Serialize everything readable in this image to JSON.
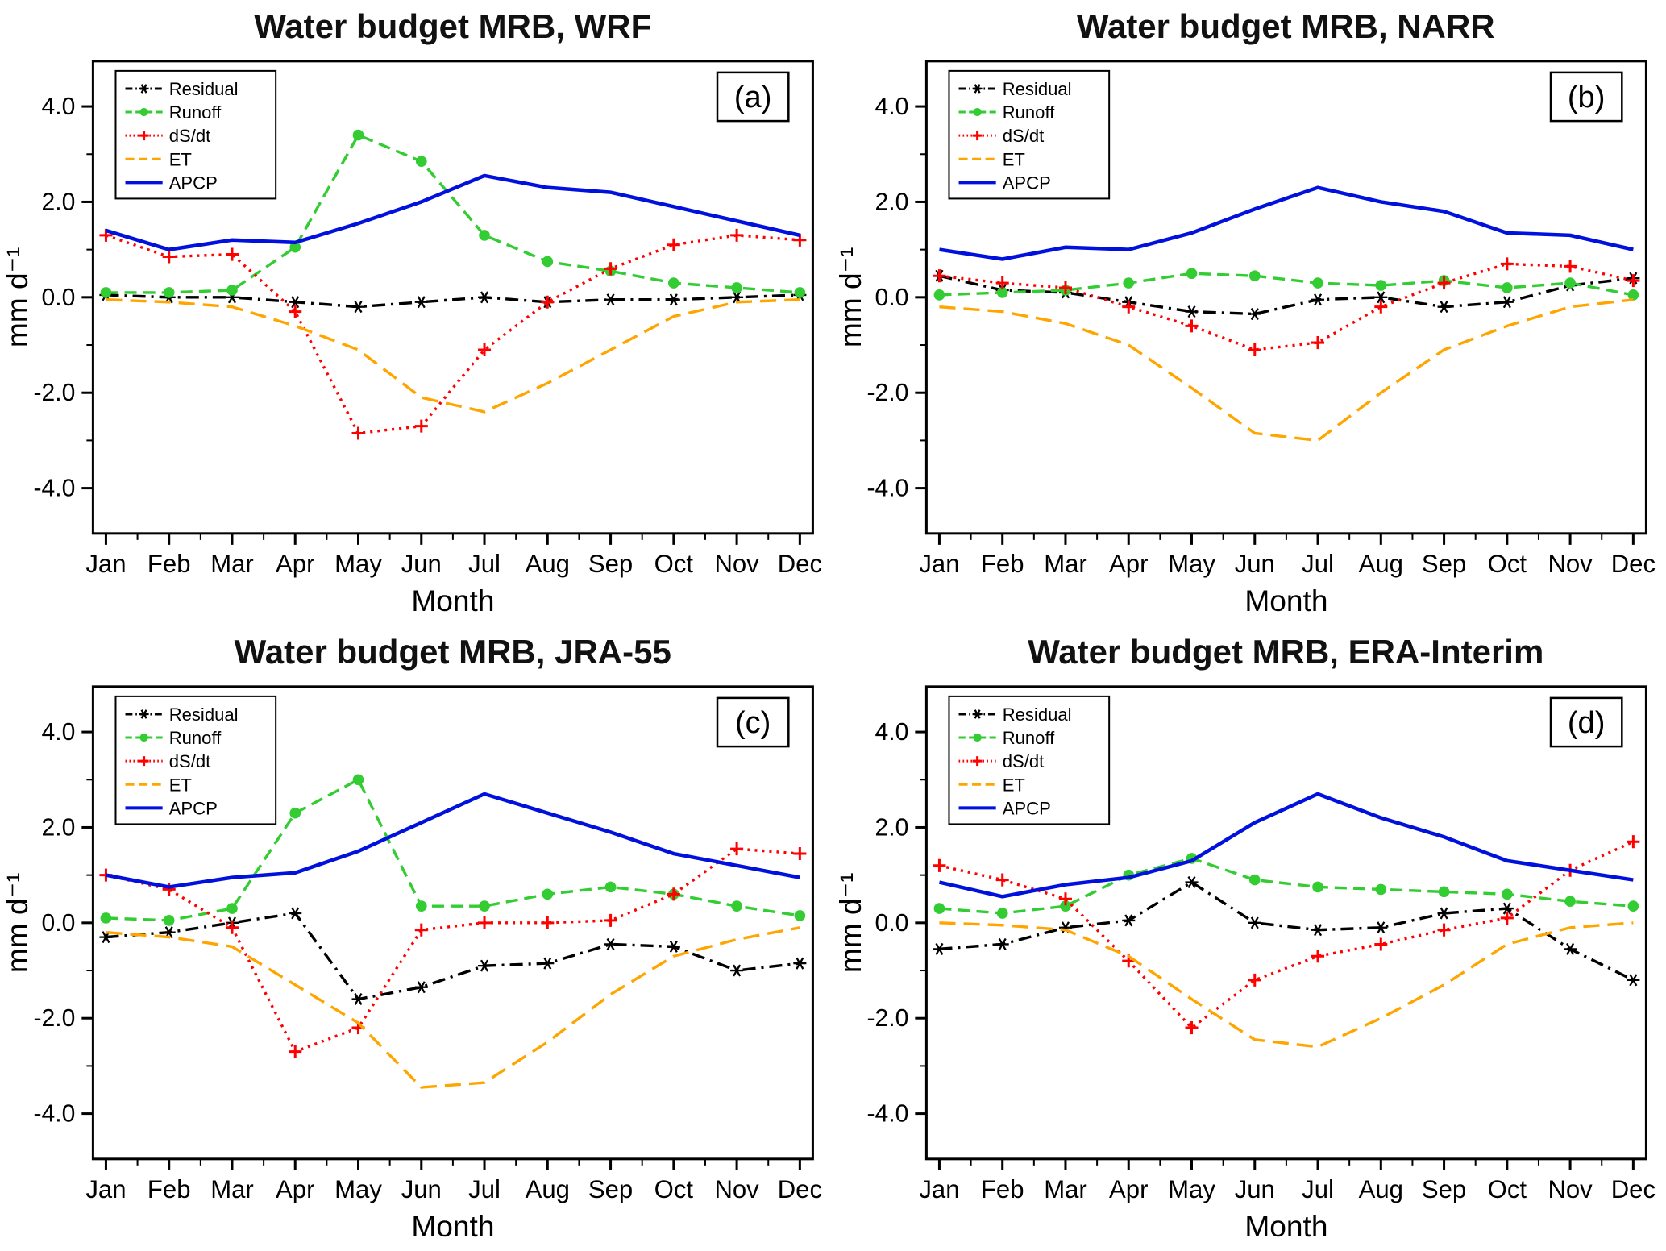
{
  "page": {
    "background": "#ffffff"
  },
  "chart_data": [
    {
      "type": "line",
      "title": "Water budget MRB, WRF",
      "panel_label": "(a)",
      "xlabel": "Month",
      "ylabel": "mm d⁻¹",
      "ylim": [
        -4.95,
        4.95
      ],
      "yticks": [
        -4,
        -2,
        0,
        2,
        4
      ],
      "ytick_labels": [
        "-4.0",
        "-2.0",
        "0.0",
        "2.0",
        "4.0"
      ],
      "yticks_minor": [
        -3,
        -1,
        1,
        3
      ],
      "categories": [
        "Jan",
        "Feb",
        "Mar",
        "Apr",
        "May",
        "Jun",
        "Jul",
        "Aug",
        "Sep",
        "Oct",
        "Nov",
        "Dec"
      ],
      "grid": false,
      "legend_position": "top-left",
      "series": [
        {
          "name": "Residual",
          "color": "#000000",
          "style": "dashdot",
          "marker": "asterisk",
          "values": [
            0.05,
            0.0,
            0.0,
            -0.1,
            -0.2,
            -0.1,
            0.0,
            -0.1,
            -0.05,
            -0.05,
            0.0,
            0.05
          ]
        },
        {
          "name": "Runoff",
          "color": "#33cc33",
          "style": "dashed",
          "marker": "circle",
          "values": [
            0.1,
            0.1,
            0.15,
            1.05,
            3.4,
            2.85,
            1.3,
            0.75,
            0.55,
            0.3,
            0.2,
            0.1
          ]
        },
        {
          "name": "dS/dt",
          "color": "#ff0000",
          "style": "dotted",
          "marker": "plus",
          "values": [
            1.3,
            0.85,
            0.9,
            -0.3,
            -2.85,
            -2.7,
            -1.1,
            -0.1,
            0.6,
            1.1,
            1.3,
            1.2
          ]
        },
        {
          "name": "ET",
          "color": "#ffa500",
          "style": "longdash",
          "marker": "none",
          "values": [
            -0.05,
            -0.1,
            -0.2,
            -0.6,
            -1.1,
            -2.1,
            -2.4,
            -1.8,
            -1.1,
            -0.4,
            -0.1,
            -0.05
          ]
        },
        {
          "name": "APCP",
          "color": "#0011dd",
          "style": "solid",
          "marker": "none",
          "values": [
            1.4,
            1.0,
            1.2,
            1.15,
            1.55,
            2.0,
            2.55,
            2.3,
            2.2,
            1.9,
            1.6,
            1.3
          ]
        }
      ]
    },
    {
      "type": "line",
      "title": "Water budget MRB, NARR",
      "panel_label": "(b)",
      "xlabel": "Month",
      "ylabel": "mm d⁻¹",
      "ylim": [
        -4.95,
        4.95
      ],
      "yticks": [
        -4,
        -2,
        0,
        2,
        4
      ],
      "ytick_labels": [
        "-4.0",
        "-2.0",
        "0.0",
        "2.0",
        "4.0"
      ],
      "yticks_minor": [
        -3,
        -1,
        1,
        3
      ],
      "categories": [
        "Jan",
        "Feb",
        "Mar",
        "Apr",
        "May",
        "Jun",
        "Jul",
        "Aug",
        "Sep",
        "Oct",
        "Nov",
        "Dec"
      ],
      "grid": false,
      "legend_position": "top-left",
      "series": [
        {
          "name": "Residual",
          "color": "#000000",
          "style": "dashdot",
          "marker": "asterisk",
          "values": [
            0.45,
            0.15,
            0.1,
            -0.1,
            -0.3,
            -0.35,
            -0.05,
            0.0,
            -0.2,
            -0.1,
            0.25,
            0.4
          ]
        },
        {
          "name": "Runoff",
          "color": "#33cc33",
          "style": "dashed",
          "marker": "circle",
          "values": [
            0.05,
            0.1,
            0.15,
            0.3,
            0.5,
            0.45,
            0.3,
            0.25,
            0.35,
            0.2,
            0.3,
            0.05
          ]
        },
        {
          "name": "dS/dt",
          "color": "#ff0000",
          "style": "dotted",
          "marker": "plus",
          "values": [
            0.45,
            0.3,
            0.2,
            -0.2,
            -0.6,
            -1.1,
            -0.95,
            -0.2,
            0.3,
            0.7,
            0.65,
            0.35
          ]
        },
        {
          "name": "ET",
          "color": "#ffa500",
          "style": "longdash",
          "marker": "none",
          "values": [
            -0.2,
            -0.3,
            -0.55,
            -1.0,
            -1.9,
            -2.85,
            -3.0,
            -2.0,
            -1.1,
            -0.6,
            -0.2,
            -0.05
          ]
        },
        {
          "name": "APCP",
          "color": "#0011dd",
          "style": "solid",
          "marker": "none",
          "values": [
            1.0,
            0.8,
            1.05,
            1.0,
            1.35,
            1.85,
            2.3,
            2.0,
            1.8,
            1.35,
            1.3,
            1.0
          ]
        }
      ]
    },
    {
      "type": "line",
      "title": "Water budget MRB, JRA-55",
      "panel_label": "(c)",
      "xlabel": "Month",
      "ylabel": "mm d⁻¹",
      "ylim": [
        -4.95,
        4.95
      ],
      "yticks": [
        -4,
        -2,
        0,
        2,
        4
      ],
      "ytick_labels": [
        "-4.0",
        "-2.0",
        "0.0",
        "2.0",
        "4.0"
      ],
      "yticks_minor": [
        -3,
        -1,
        1,
        3
      ],
      "categories": [
        "Jan",
        "Feb",
        "Mar",
        "Apr",
        "May",
        "Jun",
        "Jul",
        "Aug",
        "Sep",
        "Oct",
        "Nov",
        "Dec"
      ],
      "grid": false,
      "legend_position": "top-left",
      "series": [
        {
          "name": "Residual",
          "color": "#000000",
          "style": "dashdot",
          "marker": "asterisk",
          "values": [
            -0.3,
            -0.2,
            0.0,
            0.2,
            -1.6,
            -1.35,
            -0.9,
            -0.85,
            -0.45,
            -0.5,
            -1.0,
            -0.85
          ]
        },
        {
          "name": "Runoff",
          "color": "#33cc33",
          "style": "dashed",
          "marker": "circle",
          "values": [
            0.1,
            0.05,
            0.3,
            2.3,
            3.0,
            0.35,
            0.35,
            0.6,
            0.75,
            0.6,
            0.35,
            0.15
          ]
        },
        {
          "name": "dS/dt",
          "color": "#ff0000",
          "style": "dotted",
          "marker": "plus",
          "values": [
            1.0,
            0.7,
            -0.1,
            -2.7,
            -2.2,
            -0.15,
            0.0,
            0.0,
            0.05,
            0.6,
            1.55,
            1.45
          ]
        },
        {
          "name": "ET",
          "color": "#ffa500",
          "style": "longdash",
          "marker": "none",
          "values": [
            -0.2,
            -0.3,
            -0.5,
            -1.3,
            -2.1,
            -3.45,
            -3.35,
            -2.5,
            -1.5,
            -0.7,
            -0.35,
            -0.1
          ]
        },
        {
          "name": "APCP",
          "color": "#0011dd",
          "style": "solid",
          "marker": "none",
          "values": [
            1.0,
            0.75,
            0.95,
            1.05,
            1.5,
            2.1,
            2.7,
            2.3,
            1.9,
            1.45,
            1.2,
            0.95
          ]
        }
      ]
    },
    {
      "type": "line",
      "title": "Water budget MRB, ERA-Interim",
      "panel_label": "(d)",
      "xlabel": "Month",
      "ylabel": "mm d⁻¹",
      "ylim": [
        -4.95,
        4.95
      ],
      "yticks": [
        -4,
        -2,
        0,
        2,
        4
      ],
      "ytick_labels": [
        "-4.0",
        "-2.0",
        "0.0",
        "2.0",
        "4.0"
      ],
      "yticks_minor": [
        -3,
        -1,
        1,
        3
      ],
      "categories": [
        "Jan",
        "Feb",
        "Mar",
        "Apr",
        "May",
        "Jun",
        "Jul",
        "Aug",
        "Sep",
        "Oct",
        "Nov",
        "Dec"
      ],
      "grid": false,
      "legend_position": "top-left",
      "series": [
        {
          "name": "Residual",
          "color": "#000000",
          "style": "dashdot",
          "marker": "asterisk",
          "values": [
            -0.55,
            -0.45,
            -0.1,
            0.05,
            0.85,
            0.0,
            -0.15,
            -0.1,
            0.2,
            0.3,
            -0.55,
            -1.2
          ]
        },
        {
          "name": "Runoff",
          "color": "#33cc33",
          "style": "dashed",
          "marker": "circle",
          "values": [
            0.3,
            0.2,
            0.35,
            1.0,
            1.35,
            0.9,
            0.75,
            0.7,
            0.65,
            0.6,
            0.45,
            0.35
          ]
        },
        {
          "name": "dS/dt",
          "color": "#ff0000",
          "style": "dotted",
          "marker": "plus",
          "values": [
            1.2,
            0.9,
            0.5,
            -0.8,
            -2.2,
            -1.2,
            -0.7,
            -0.45,
            -0.15,
            0.1,
            1.1,
            1.7
          ]
        },
        {
          "name": "ET",
          "color": "#ffa500",
          "style": "longdash",
          "marker": "none",
          "values": [
            0.0,
            -0.05,
            -0.15,
            -0.7,
            -1.6,
            -2.45,
            -2.6,
            -2.0,
            -1.3,
            -0.45,
            -0.1,
            0.0
          ]
        },
        {
          "name": "APCP",
          "color": "#0011dd",
          "style": "solid",
          "marker": "none",
          "values": [
            0.85,
            0.55,
            0.8,
            0.95,
            1.3,
            2.1,
            2.7,
            2.2,
            1.8,
            1.3,
            1.1,
            0.9
          ]
        }
      ]
    }
  ]
}
